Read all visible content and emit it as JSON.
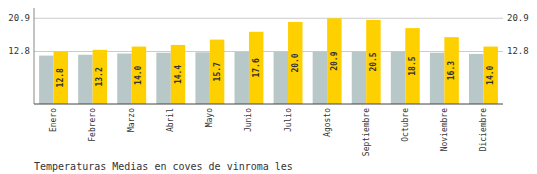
{
  "chart_data": {
    "type": "bar",
    "title": "Temperaturas Medias en coves de vinroma les",
    "categories": [
      "Enero",
      "Febrero",
      "Marzo",
      "Abril",
      "Mayo",
      "Junio",
      "Julio",
      "Agosto",
      "Septiembre",
      "Octubre",
      "Noviembre",
      "Diciembre"
    ],
    "series": [
      {
        "color": "#B8C8C8",
        "values": [
          11.8,
          12.0,
          12.3,
          12.5,
          12.6,
          12.7,
          12.8,
          12.8,
          12.8,
          12.8,
          12.5,
          12.2
        ]
      },
      {
        "color": "#FFD000",
        "data_labels": true,
        "values": [
          12.8,
          13.2,
          14.0,
          14.4,
          15.7,
          17.6,
          20.0,
          20.9,
          20.5,
          18.5,
          16.3,
          14.0
        ],
        "value_labels": [
          "12.8",
          "13.2",
          "14.0",
          "14.4",
          "15.7",
          "17.6",
          "20.0",
          "20.9",
          "20.5",
          "18.5",
          "16.3",
          "14.0"
        ]
      }
    ],
    "ylim": [
      0,
      23.4
    ],
    "yticks": [
      12.8,
      20.9
    ],
    "y2lim": [
      0,
      23.4
    ],
    "y2ticks": [
      12.8,
      20.9
    ],
    "grid": true
  }
}
